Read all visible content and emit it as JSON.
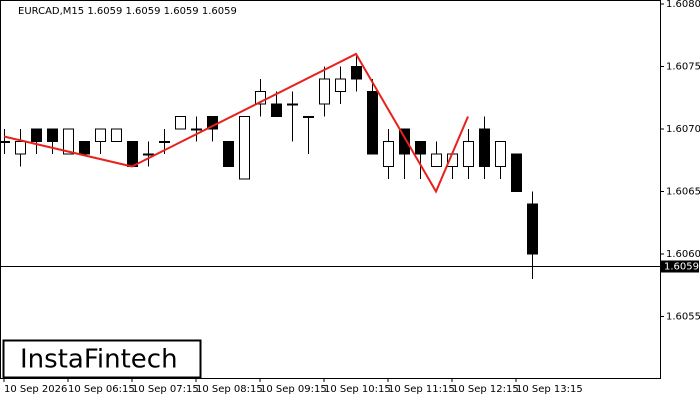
{
  "chart_data": {
    "type": "candlestick",
    "title": "EURCAD,M15  1.6059 1.6059 1.6059 1.6059",
    "watermark": "InstaFintech",
    "categories": [
      "10 Sep 2026",
      null,
      null,
      null,
      "10 Sep 06:15",
      null,
      null,
      null,
      "10 Sep 07:15",
      null,
      null,
      null,
      "10 Sep 08:15",
      null,
      null,
      null,
      "10 Sep 09:15",
      null,
      null,
      null,
      "10 Sep 10:15",
      null,
      null,
      null,
      "10 Sep 11:15",
      null,
      null,
      null,
      "10 Sep 12:15",
      null,
      null,
      null,
      "10 Sep 13:15",
      null
    ],
    "open": [
      1.6069,
      1.6068,
      1.607,
      1.607,
      1.6068,
      1.6069,
      1.6069,
      1.6069,
      1.6069,
      1.6068,
      1.6069,
      1.607,
      1.607,
      1.6071,
      1.6069,
      1.6066,
      1.6072,
      1.6072,
      1.6072,
      1.6071,
      1.6072,
      1.6073,
      1.6075,
      1.6073,
      1.6067,
      1.607,
      1.6069,
      1.6067,
      1.6067,
      1.6067,
      1.607,
      1.6067,
      1.6068,
      1.6064
    ],
    "high": [
      1.607,
      1.607,
      1.607,
      1.607,
      1.607,
      1.6069,
      1.607,
      1.607,
      1.6069,
      1.6069,
      1.607,
      1.6071,
      1.6071,
      1.6071,
      1.6069,
      1.6071,
      1.6074,
      1.6073,
      1.6073,
      1.6071,
      1.6075,
      1.6075,
      1.6076,
      1.6074,
      1.607,
      1.607,
      1.6069,
      1.6069,
      1.6068,
      1.607,
      1.6071,
      1.6069,
      1.6068,
      1.6065
    ],
    "low": [
      1.6068,
      1.6067,
      1.6068,
      1.6068,
      1.6068,
      1.6068,
      1.6068,
      1.6069,
      1.6067,
      1.6067,
      1.6068,
      1.607,
      1.6069,
      1.6069,
      1.6067,
      1.6066,
      1.6071,
      1.6071,
      1.6069,
      1.6068,
      1.6071,
      1.6072,
      1.6073,
      1.6068,
      1.6066,
      1.6066,
      1.6066,
      1.6067,
      1.6066,
      1.6066,
      1.6066,
      1.6066,
      1.6065,
      1.6058
    ],
    "close": [
      1.6069,
      1.6069,
      1.6069,
      1.6069,
      1.607,
      1.6068,
      1.607,
      1.607,
      1.6067,
      1.6068,
      1.6069,
      1.6071,
      1.607,
      1.607,
      1.6067,
      1.6071,
      1.6073,
      1.6071,
      1.6072,
      1.6071,
      1.6074,
      1.6074,
      1.6074,
      1.6068,
      1.6069,
      1.6068,
      1.6068,
      1.6068,
      1.6068,
      1.6069,
      1.6067,
      1.6069,
      1.6065,
      1.606
    ],
    "up_color": "#ffffff",
    "down_color": "#000000",
    "pattern": {
      "color": "#e8211b",
      "x": [
        0,
        8,
        22,
        27,
        29
      ],
      "y": [
        1.60694,
        1.6067,
        1.6076,
        1.6065,
        1.6071
      ]
    },
    "last_price": 1.6059,
    "ylim": [
      1.605,
      1.608
    ],
    "yticks": [
      {
        "value": 1.608,
        "label": "1.6080"
      },
      1.6075,
      {
        "value": 1.607,
        "label": "1.6070"
      },
      1.6065,
      {
        "value": 1.606,
        "label": "1.6060"
      },
      1.6055
    ]
  }
}
